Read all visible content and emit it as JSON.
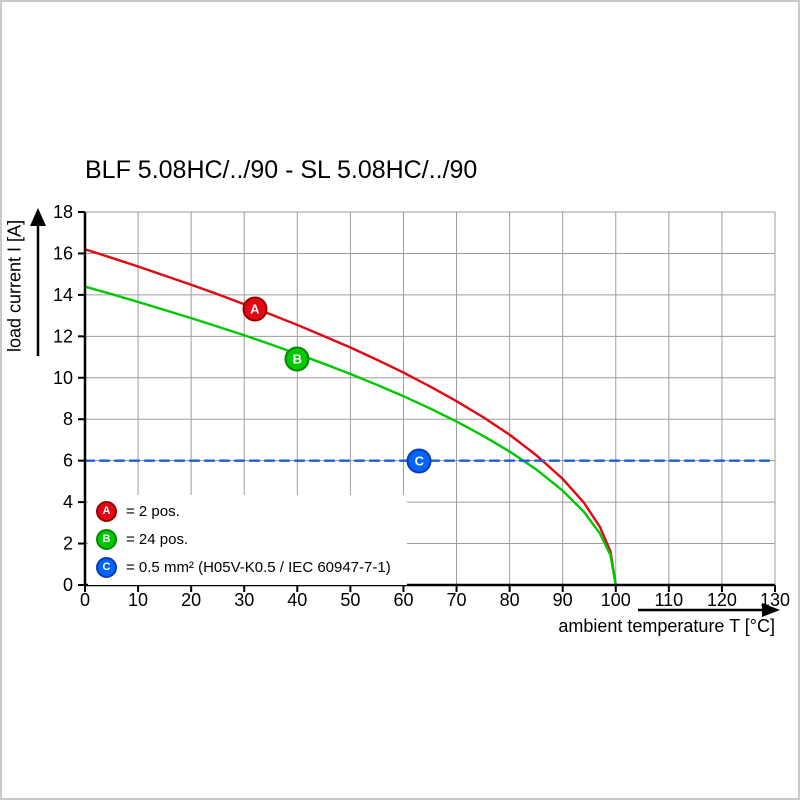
{
  "chart_data": {
    "type": "line",
    "title": "BLF 5.08HC/../90 - SL 5.08HC/../90",
    "xlabel": "ambient temperature T [°C]",
    "ylabel": "load current I [A]",
    "xlim": [
      0,
      130
    ],
    "ylim": [
      0,
      18
    ],
    "x_ticks": [
      0,
      10,
      20,
      30,
      40,
      50,
      60,
      70,
      80,
      90,
      100,
      110,
      120,
      130
    ],
    "y_ticks": [
      0,
      2,
      4,
      6,
      8,
      10,
      12,
      14,
      16,
      18
    ],
    "grid": true,
    "legend_position": "lower-left inside plot",
    "series": [
      {
        "name": "A = 2 pos.",
        "color": "#e30613",
        "style": "solid",
        "points": [
          [
            0,
            16.2
          ],
          [
            5,
            15.79
          ],
          [
            10,
            15.37
          ],
          [
            15,
            14.93
          ],
          [
            20,
            14.49
          ],
          [
            25,
            14.03
          ],
          [
            30,
            13.55
          ],
          [
            35,
            13.06
          ],
          [
            40,
            12.55
          ],
          [
            45,
            12.01
          ],
          [
            50,
            11.46
          ],
          [
            55,
            10.87
          ],
          [
            60,
            10.25
          ],
          [
            65,
            9.58
          ],
          [
            70,
            8.87
          ],
          [
            75,
            8.1
          ],
          [
            80,
            7.25
          ],
          [
            85,
            6.27
          ],
          [
            90,
            5.12
          ],
          [
            94,
            3.97
          ],
          [
            97,
            2.81
          ],
          [
            99,
            1.62
          ],
          [
            100,
            0
          ]
        ]
      },
      {
        "name": "B = 24 pos.",
        "color": "#00c800",
        "style": "solid",
        "points": [
          [
            0,
            14.4
          ],
          [
            5,
            14.04
          ],
          [
            10,
            13.66
          ],
          [
            15,
            13.27
          ],
          [
            20,
            12.88
          ],
          [
            25,
            12.47
          ],
          [
            30,
            12.05
          ],
          [
            35,
            11.61
          ],
          [
            40,
            11.15
          ],
          [
            45,
            10.68
          ],
          [
            50,
            10.18
          ],
          [
            55,
            9.66
          ],
          [
            60,
            9.11
          ],
          [
            65,
            8.52
          ],
          [
            70,
            7.89
          ],
          [
            75,
            7.2
          ],
          [
            80,
            6.44
          ],
          [
            85,
            5.58
          ],
          [
            90,
            4.55
          ],
          [
            94,
            3.53
          ],
          [
            97,
            2.49
          ],
          [
            99,
            1.44
          ],
          [
            100,
            0
          ]
        ]
      },
      {
        "name": "C = 0.5 mm² (H05V-K0.5 / IEC 60947-7-1)",
        "color": "#1e5ae0",
        "style": "dashed",
        "points": [
          [
            0,
            6
          ],
          [
            130,
            6
          ]
        ]
      }
    ],
    "markers": [
      {
        "label": "A",
        "x": 32,
        "y": 13.3,
        "color": "#e30613",
        "border": "#9b0000"
      },
      {
        "label": "B",
        "x": 40,
        "y": 10.9,
        "color": "#00c800",
        "border": "#008a00"
      },
      {
        "label": "C",
        "x": 63,
        "y": 6,
        "color": "#0064ff",
        "border": "#0a3cb4"
      }
    ]
  },
  "legend": {
    "items": [
      {
        "letter": "A",
        "color": "#e30613",
        "border": "#9b0000",
        "text": "= 2 pos."
      },
      {
        "letter": "B",
        "color": "#00c800",
        "border": "#008a00",
        "text": "= 24 pos."
      },
      {
        "letter": "C",
        "color": "#0064ff",
        "border": "#0a3cb4",
        "text": "= 0.5 mm² (H05V-K0.5 / IEC 60947-7-1)"
      }
    ]
  }
}
